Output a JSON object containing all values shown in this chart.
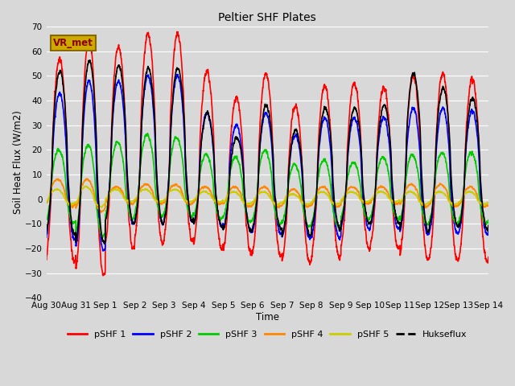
{
  "title": "Peltier SHF Plates",
  "xlabel": "Time",
  "ylabel": "Soil Heat Flux (W/m2)",
  "ylim": [
    -40,
    70
  ],
  "xlim": [
    0,
    15
  ],
  "fig_bg_color": "#d8d8d8",
  "plot_bg_color": "#d8d8d8",
  "grid_color": "#ffffff",
  "annotation_text": "VR_met",
  "annotation_bg": "#ccaa00",
  "annotation_border": "#886600",
  "xtick_labels": [
    "Aug 30",
    "Aug 31",
    "Sep 1",
    "Sep 2",
    "Sep 3",
    "Sep 4",
    "Sep 5",
    "Sep 6",
    "Sep 7",
    "Sep 8",
    "Sep 9",
    "Sep 10",
    "Sep 11",
    "Sep 12",
    "Sep 13",
    "Sep 14"
  ],
  "xtick_positions": [
    0,
    1,
    2,
    3,
    4,
    5,
    6,
    7,
    8,
    9,
    10,
    11,
    12,
    13,
    14,
    15
  ],
  "ytick_positions": [
    -40,
    -30,
    -20,
    -10,
    0,
    10,
    20,
    30,
    40,
    50,
    60,
    70
  ],
  "series_colors": {
    "pSHF1": "#ff0000",
    "pSHF2": "#0000ff",
    "pSHF3": "#00cc00",
    "pSHF4": "#ff8800",
    "pSHF5": "#cccc00",
    "Hukseflux": "#000000"
  },
  "series_labels": [
    "pSHF 1",
    "pSHF 2",
    "pSHF 3",
    "pSHF 4",
    "pSHF 5",
    "Hukseflux"
  ],
  "linewidth": 1.2
}
